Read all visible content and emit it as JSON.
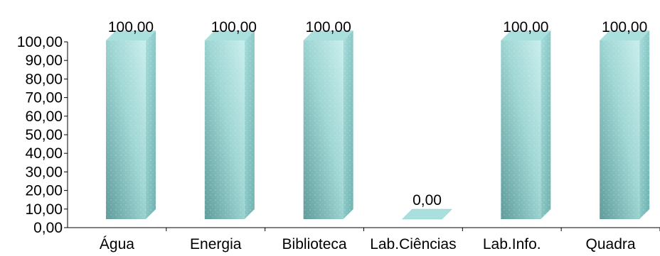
{
  "chart_data": {
    "type": "bar",
    "style": "3d-column",
    "categories": [
      "Água",
      "Energia",
      "Biblioteca",
      "Lab.Ciências",
      "Lab.Info.",
      "Quadra"
    ],
    "values": [
      100,
      100,
      100,
      0,
      100,
      100
    ],
    "data_labels": [
      "100,00",
      "100,00",
      "100,00",
      "0,00",
      "100,00",
      "100,00"
    ],
    "y_ticks": [
      "0,00",
      "10,00",
      "20,00",
      "30,00",
      "40,00",
      "50,00",
      "60,00",
      "70,00",
      "80,00",
      "90,00",
      "100,00"
    ],
    "ylim": [
      0,
      100
    ],
    "title": "",
    "xlabel": "",
    "ylabel": "",
    "grid": false,
    "legend": "none",
    "colors": {
      "bar_front_light": "#bfe9e7",
      "bar_front_dark": "#5f9c9b",
      "bar_side": "#8ccfcd",
      "bar_top": "#a9e0de",
      "axis": "#000000"
    }
  }
}
